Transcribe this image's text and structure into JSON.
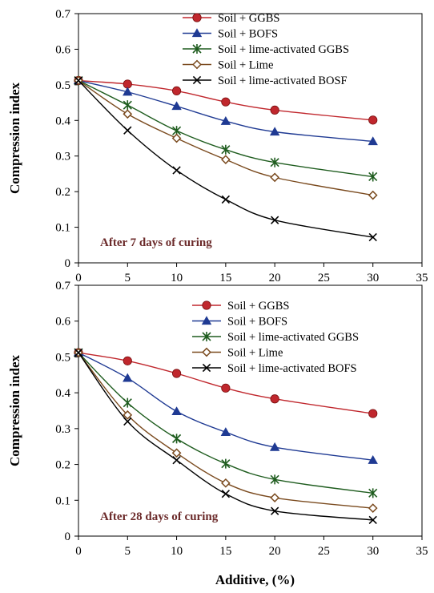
{
  "chart_data": [
    {
      "type": "line",
      "title": "",
      "annotation": "After 7 days of curing",
      "xlabel": "",
      "ylabel": "Compression index",
      "xlim": [
        0,
        35
      ],
      "ylim": [
        0,
        0.7
      ],
      "x": [
        0,
        5,
        10,
        15,
        20,
        30
      ],
      "x_ticks": [
        "0",
        "5",
        "10",
        "15",
        "20",
        "25",
        "30",
        "35"
      ],
      "y_ticks": [
        "0",
        "0.1",
        "0.2",
        "0.3",
        "0.4",
        "0.5",
        "0.6",
        "0.7"
      ],
      "legend_position": "top-right",
      "series": [
        {
          "name": "Soil + GGBS",
          "marker": "circle",
          "color": "#c0272d",
          "values": [
            0.512,
            0.502,
            0.483,
            0.452,
            0.429,
            0.401
          ]
        },
        {
          "name": "Soil + BOFS",
          "marker": "triangle",
          "color": "#1f3a93",
          "values": [
            0.512,
            0.48,
            0.44,
            0.398,
            0.368,
            0.341
          ]
        },
        {
          "name": "Soil + lime-activated GGBS",
          "marker": "asterisk",
          "color": "#1e5c1e",
          "values": [
            0.512,
            0.443,
            0.371,
            0.318,
            0.282,
            0.242
          ]
        },
        {
          "name": "Soil + Lime",
          "marker": "diamond",
          "color": "#7a4a1e",
          "values": [
            0.512,
            0.418,
            0.35,
            0.29,
            0.24,
            0.19
          ]
        },
        {
          "name": "Soil + lime-activated BOSF",
          "marker": "x",
          "color": "#000000",
          "values": [
            0.512,
            0.372,
            0.26,
            0.178,
            0.12,
            0.072
          ]
        }
      ]
    },
    {
      "type": "line",
      "title": "",
      "annotation": "After 28 days of curing",
      "xlabel": "Additive, (%)",
      "ylabel": "Compression index",
      "xlim": [
        0,
        35
      ],
      "ylim": [
        0,
        0.7
      ],
      "x": [
        0,
        5,
        10,
        15,
        20,
        30
      ],
      "x_ticks": [
        "0",
        "5",
        "10",
        "15",
        "20",
        "25",
        "30",
        "35"
      ],
      "y_ticks": [
        "0",
        "0.1",
        "0.2",
        "0.3",
        "0.4",
        "0.5",
        "0.6",
        "0.7"
      ],
      "legend_position": "top-right",
      "series": [
        {
          "name": "Soil + GGBS",
          "marker": "circle",
          "color": "#c0272d",
          "values": [
            0.512,
            0.489,
            0.454,
            0.413,
            0.383,
            0.342
          ]
        },
        {
          "name": "Soil + BOFS",
          "marker": "triangle",
          "color": "#1f3a93",
          "values": [
            0.512,
            0.441,
            0.348,
            0.29,
            0.248,
            0.212
          ]
        },
        {
          "name": "Soil + lime-activated GGBS",
          "marker": "asterisk",
          "color": "#1e5c1e",
          "values": [
            0.512,
            0.372,
            0.272,
            0.202,
            0.158,
            0.12
          ]
        },
        {
          "name": "Soil + Lime",
          "marker": "diamond",
          "color": "#7a4a1e",
          "values": [
            0.512,
            0.338,
            0.232,
            0.148,
            0.107,
            0.078
          ]
        },
        {
          "name": "Soil + lime-activated BOFS",
          "marker": "x",
          "color": "#000000",
          "values": [
            0.512,
            0.32,
            0.212,
            0.118,
            0.07,
            0.045
          ]
        }
      ]
    }
  ]
}
